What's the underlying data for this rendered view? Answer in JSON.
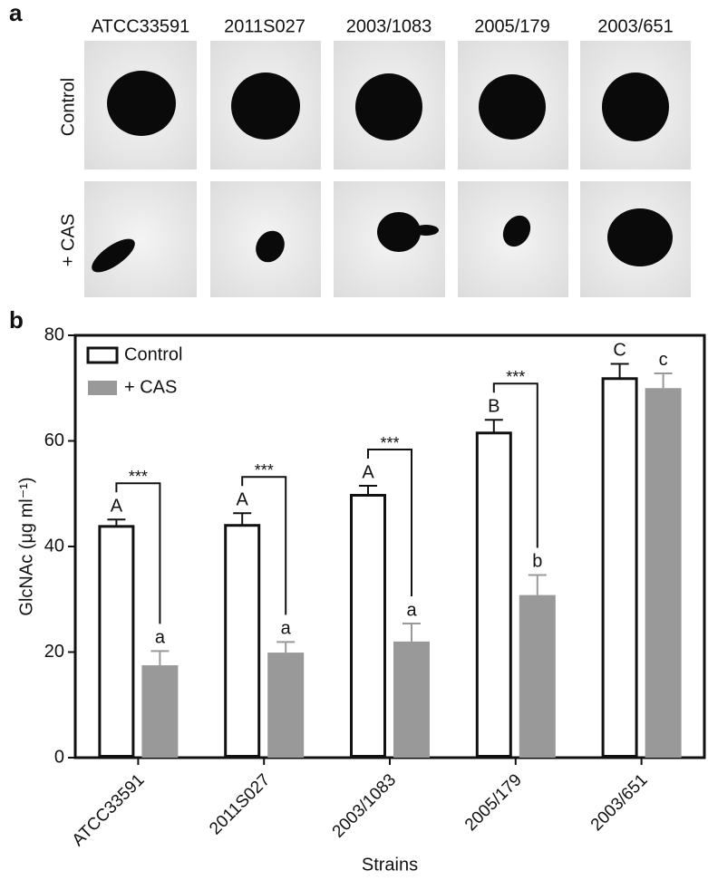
{
  "panel_a": {
    "label": "a",
    "columns": [
      "ATCC33591",
      "2011S027",
      "2003/1083",
      "2005/179",
      "2003/651"
    ],
    "rows": [
      "Control",
      "+ CAS"
    ]
  },
  "chart_data": {
    "type": "bar",
    "panel_label": "b",
    "y_label": "GlcNAc (μg ml⁻¹)",
    "x_label": "Strains",
    "categories": [
      "ATCC33591",
      "2011S027",
      "2003/1083",
      "2005/179",
      "2003/651"
    ],
    "series": [
      {
        "name": "Control",
        "color": "#ffffff",
        "edge": "#111111",
        "values": [
          43.8,
          44,
          49.7,
          61.5,
          71.8
        ],
        "errors": [
          1.3,
          2.3,
          1.8,
          2.5,
          2.8
        ],
        "letters": [
          "A",
          "A",
          "A",
          "B",
          "C"
        ]
      },
      {
        "name": "+ CAS",
        "color": "#999999",
        "edge": "#999999",
        "values": [
          17.5,
          19.9,
          22,
          30.8,
          70
        ],
        "errors": [
          2.7,
          2,
          3.4,
          3.8,
          2.8
        ],
        "letters": [
          "a",
          "a",
          "a",
          "b",
          "c"
        ]
      }
    ],
    "significance": [
      "***",
      "***",
      "***",
      "***",
      null
    ],
    "ylim": [
      0,
      80
    ],
    "yticks": [
      0,
      20,
      40,
      60,
      80
    ],
    "legend": "upper left",
    "grid": false
  }
}
